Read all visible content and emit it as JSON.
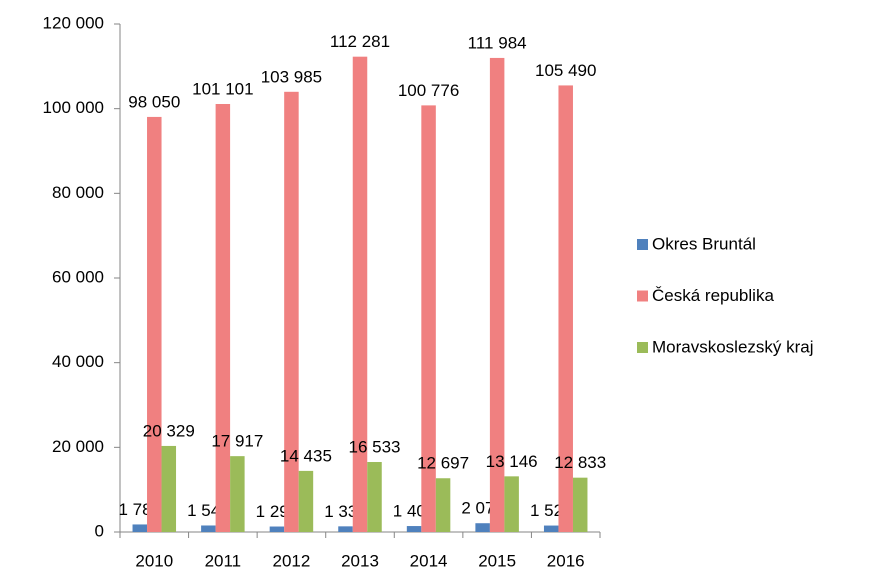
{
  "chart_data": {
    "type": "bar",
    "categories": [
      "2010",
      "2011",
      "2012",
      "2013",
      "2014",
      "2015",
      "2016"
    ],
    "series": [
      {
        "name": "Okres Bruntál",
        "color": "#4f81bd",
        "values": [
          1783,
          1540,
          1293,
          1335,
          1405,
          2074,
          1522
        ],
        "value_labels": [
          "1 783",
          "1 540",
          "1 293",
          "1 335",
          "1 405",
          "2 074",
          "1 522"
        ]
      },
      {
        "name": "Česká republika",
        "color": "#f08080",
        "values": [
          98050,
          101101,
          103985,
          112281,
          100776,
          111984,
          105490
        ],
        "value_labels": [
          "98 050",
          "101 101",
          "103 985",
          "112 281",
          "100 776",
          "111 984",
          "105 490"
        ]
      },
      {
        "name": "Moravskoslezský kraj",
        "color": "#9bbb59",
        "values": [
          20329,
          17917,
          14435,
          16533,
          12697,
          13146,
          12833
        ],
        "value_labels": [
          "20 329",
          "17 917",
          "14 435",
          "16 533",
          "12 697",
          "13 146",
          "12 833"
        ]
      }
    ],
    "ylim": [
      0,
      120000
    ],
    "yticks": [
      0,
      {
        "value": 20000,
        "label": "20 000"
      },
      {
        "value": 40000,
        "label": "40 000"
      },
      {
        "value": 60000,
        "label": "60 000"
      },
      {
        "value": 80000,
        "label": "80 000"
      },
      {
        "value": 100000,
        "label": "100 000"
      },
      {
        "value": 120000,
        "label": "120 000"
      }
    ],
    "grid": false,
    "legend": "right"
  }
}
